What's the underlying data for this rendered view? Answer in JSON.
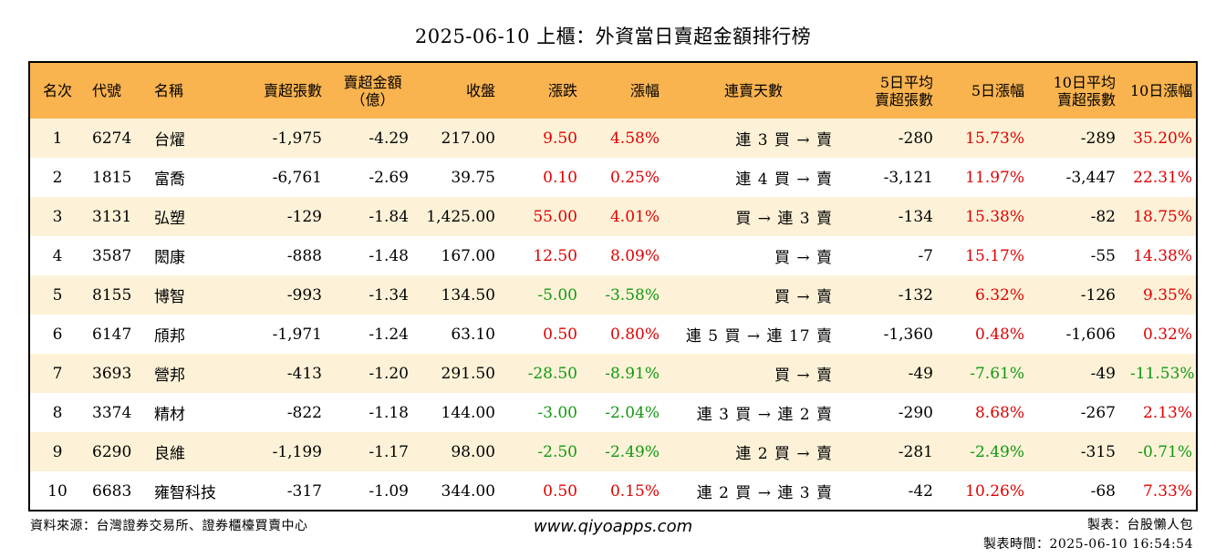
{
  "title": "2025-06-10 上櫃：外資當日賣超金額排行榜",
  "headers": {
    "rank": "名次",
    "code": "代號",
    "name": "名稱",
    "sell_shares": "賣超張數",
    "sell_amount_1": "賣超金額",
    "sell_amount_2": "（億）",
    "close": "收盤",
    "change": "漲跌",
    "change_pct": "漲幅",
    "streak": "連賣天數",
    "avg5_1": "5日平均",
    "avg5_2": "賣超張數",
    "pct5": "5日漲幅",
    "avg10_1": "10日平均",
    "avg10_2": "賣超張數",
    "pct10": "10日漲幅"
  },
  "rows": [
    {
      "rank": "1",
      "code": "6274",
      "name": "台燿",
      "sell_shares": "-1,975",
      "sell_amount": "-4.29",
      "close": "217.00",
      "change": "9.50",
      "change_pct": "4.58%",
      "streak": "連 3 買 → 賣",
      "avg5": "-280",
      "pct5": "15.73%",
      "avg10": "-289",
      "pct10": "35.20%"
    },
    {
      "rank": "2",
      "code": "1815",
      "name": "富喬",
      "sell_shares": "-6,761",
      "sell_amount": "-2.69",
      "close": "39.75",
      "change": "0.10",
      "change_pct": "0.25%",
      "streak": "連 4 買 → 賣",
      "avg5": "-3,121",
      "pct5": "11.97%",
      "avg10": "-3,447",
      "pct10": "22.31%"
    },
    {
      "rank": "3",
      "code": "3131",
      "name": "弘塑",
      "sell_shares": "-129",
      "sell_amount": "-1.84",
      "close": "1,425.00",
      "change": "55.00",
      "change_pct": "4.01%",
      "streak": "買 → 連 3 賣",
      "avg5": "-134",
      "pct5": "15.38%",
      "avg10": "-82",
      "pct10": "18.75%"
    },
    {
      "rank": "4",
      "code": "3587",
      "name": "閎康",
      "sell_shares": "-888",
      "sell_amount": "-1.48",
      "close": "167.00",
      "change": "12.50",
      "change_pct": "8.09%",
      "streak": "買 → 賣",
      "avg5": "-7",
      "pct5": "15.17%",
      "avg10": "-55",
      "pct10": "14.38%"
    },
    {
      "rank": "5",
      "code": "8155",
      "name": "博智",
      "sell_shares": "-993",
      "sell_amount": "-1.34",
      "close": "134.50",
      "change": "-5.00",
      "change_pct": "-3.58%",
      "streak": "買 → 賣",
      "avg5": "-132",
      "pct5": "6.32%",
      "avg10": "-126",
      "pct10": "9.35%"
    },
    {
      "rank": "6",
      "code": "6147",
      "name": "頎邦",
      "sell_shares": "-1,971",
      "sell_amount": "-1.24",
      "close": "63.10",
      "change": "0.50",
      "change_pct": "0.80%",
      "streak": "連 5 買 → 連 17 賣",
      "avg5": "-1,360",
      "pct5": "0.48%",
      "avg10": "-1,606",
      "pct10": "0.32%"
    },
    {
      "rank": "7",
      "code": "3693",
      "name": "營邦",
      "sell_shares": "-413",
      "sell_amount": "-1.20",
      "close": "291.50",
      "change": "-28.50",
      "change_pct": "-8.91%",
      "streak": "買 → 賣",
      "avg5": "-49",
      "pct5": "-7.61%",
      "avg10": "-49",
      "pct10": "-11.53%"
    },
    {
      "rank": "8",
      "code": "3374",
      "name": "精材",
      "sell_shares": "-822",
      "sell_amount": "-1.18",
      "close": "144.00",
      "change": "-3.00",
      "change_pct": "-2.04%",
      "streak": "連 3 買 → 連 2 賣",
      "avg5": "-290",
      "pct5": "8.68%",
      "avg10": "-267",
      "pct10": "2.13%"
    },
    {
      "rank": "9",
      "code": "6290",
      "name": "良維",
      "sell_shares": "-1,199",
      "sell_amount": "-1.17",
      "close": "98.00",
      "change": "-2.50",
      "change_pct": "-2.49%",
      "streak": "連 2 買 → 賣",
      "avg5": "-281",
      "pct5": "-2.49%",
      "avg10": "-315",
      "pct10": "-0.71%"
    },
    {
      "rank": "10",
      "code": "6683",
      "name": "雍智科技",
      "sell_shares": "-317",
      "sell_amount": "-1.09",
      "close": "344.00",
      "change": "0.50",
      "change_pct": "0.15%",
      "streak": "連 2 買 → 連 3 賣",
      "avg5": "-42",
      "pct5": "10.26%",
      "avg10": "-68",
      "pct10": "7.33%"
    }
  ],
  "footer": {
    "source": "資料來源：台灣證券交易所、證券櫃檯買賣中心",
    "website": "www.qiyoapps.com",
    "maker": "製表：台股懶人包",
    "made_time": "製表時間：2025-06-10 16:54:54"
  },
  "colors": {
    "header_bg": "#f9b34f",
    "odd_row_bg": "#fdf2d8",
    "positive": "#e00000",
    "negative": "#119911"
  }
}
